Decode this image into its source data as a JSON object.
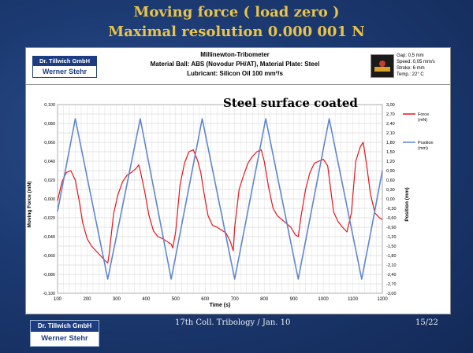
{
  "slide": {
    "title_line1": "Moving force ( load zero )",
    "title_line2": "Maximal resolution  0.000 001 N",
    "footer_center": "17th Coll. Tribology / Jan. 10",
    "page_number": "15/22"
  },
  "company": {
    "name": "Dr. Tillwich GmbH",
    "person": "Werner Stehr"
  },
  "header": {
    "line1": "Millinewton-Tribometer",
    "line2": "Material Ball: ABS (Novodur PH/AT), Material Plate: Steel",
    "line3": "Lubricant: Silicon Oil 100 mm²/s",
    "params": [
      "Gap: 0,5 mm",
      "Speed: 0,05 mm/s",
      "Stroke: 6 mm",
      "Temp.: 22° C"
    ]
  },
  "chart_data": {
    "type": "line",
    "annotation": "Steel surface coated",
    "xlabel": "Time (s)",
    "ylabel_left": "Moving Force (mN)",
    "ylabel_right": "Position (mm)",
    "xlim": [
      100,
      1200
    ],
    "ylim_left": [
      -0.1,
      0.1
    ],
    "ylim_right": [
      -3.0,
      3.0
    ],
    "x_ticks": [
      "100",
      "200",
      "300",
      "400",
      "500",
      "600",
      "700",
      "800",
      "900",
      "1000",
      "1100",
      "1200"
    ],
    "y_left_ticks": [
      "0,100",
      "0,080",
      "0,060",
      "0,040",
      "0,020",
      "0,000",
      "-0,020",
      "-0,040",
      "-0,060",
      "-0,080",
      "-0,100"
    ],
    "y_right_ticks": [
      "3,00",
      "2,70",
      "2,40",
      "2,10",
      "1,80",
      "1,50",
      "1,20",
      "0,90",
      "0,60",
      "0,30",
      "0,00",
      "-0,30",
      "-0,60",
      "-0,90",
      "-1,20",
      "-1,50",
      "-1,80",
      "-2,10",
      "-2,40",
      "-2,70",
      "-3,00"
    ],
    "grid": true,
    "legend_position": "right",
    "series": [
      {
        "name": "Force (mN)",
        "axis": "left",
        "color": "#e8141b",
        "x": [
          100,
          115,
          130,
          145,
          160,
          175,
          185,
          200,
          215,
          230,
          245,
          260,
          270,
          275,
          290,
          305,
          320,
          335,
          350,
          365,
          375,
          380,
          395,
          410,
          425,
          440,
          455,
          470,
          485,
          490,
          500,
          515,
          530,
          545,
          560,
          575,
          585,
          595,
          610,
          625,
          640,
          655,
          670,
          685,
          695,
          700,
          715,
          730,
          745,
          760,
          775,
          790,
          800,
          815,
          830,
          845,
          860,
          875,
          890,
          905,
          915,
          925,
          940,
          955,
          970,
          985,
          1000,
          1015,
          1025,
          1035,
          1050,
          1065,
          1080,
          1095,
          1110,
          1125,
          1135,
          1145,
          1160,
          1175,
          1190,
          1200
        ],
        "y": [
          -0.002,
          0.018,
          0.028,
          0.03,
          0.02,
          -0.005,
          -0.025,
          -0.042,
          -0.05,
          -0.055,
          -0.06,
          -0.065,
          -0.068,
          -0.058,
          -0.015,
          0.005,
          0.018,
          0.025,
          0.028,
          0.032,
          0.036,
          0.03,
          0.008,
          -0.018,
          -0.034,
          -0.04,
          -0.042,
          -0.045,
          -0.048,
          -0.052,
          -0.035,
          0.015,
          0.038,
          0.05,
          0.052,
          0.04,
          0.028,
          0.008,
          -0.018,
          -0.028,
          -0.03,
          -0.033,
          -0.036,
          -0.045,
          -0.055,
          -0.03,
          0.01,
          0.025,
          0.038,
          0.045,
          0.05,
          0.052,
          0.04,
          0.012,
          -0.01,
          -0.018,
          -0.022,
          -0.026,
          -0.03,
          -0.038,
          -0.04,
          -0.018,
          0.01,
          0.028,
          0.038,
          0.04,
          0.042,
          0.035,
          0.01,
          -0.014,
          -0.024,
          -0.03,
          -0.035,
          -0.015,
          0.04,
          0.055,
          0.06,
          0.04,
          0.005,
          -0.015,
          -0.02,
          -0.022
        ]
      },
      {
        "name": "Position (mm)",
        "axis": "right",
        "color": "#5f86d0",
        "x": [
          100,
          160,
          270,
          380,
          485,
          590,
          700,
          805,
          915,
          1020,
          1130,
          1160,
          1200
        ],
        "y": [
          -0.4,
          2.55,
          -2.55,
          2.55,
          -2.55,
          2.55,
          -2.55,
          2.55,
          -2.55,
          2.55,
          -2.55,
          -1.1,
          0.9
        ]
      }
    ]
  }
}
